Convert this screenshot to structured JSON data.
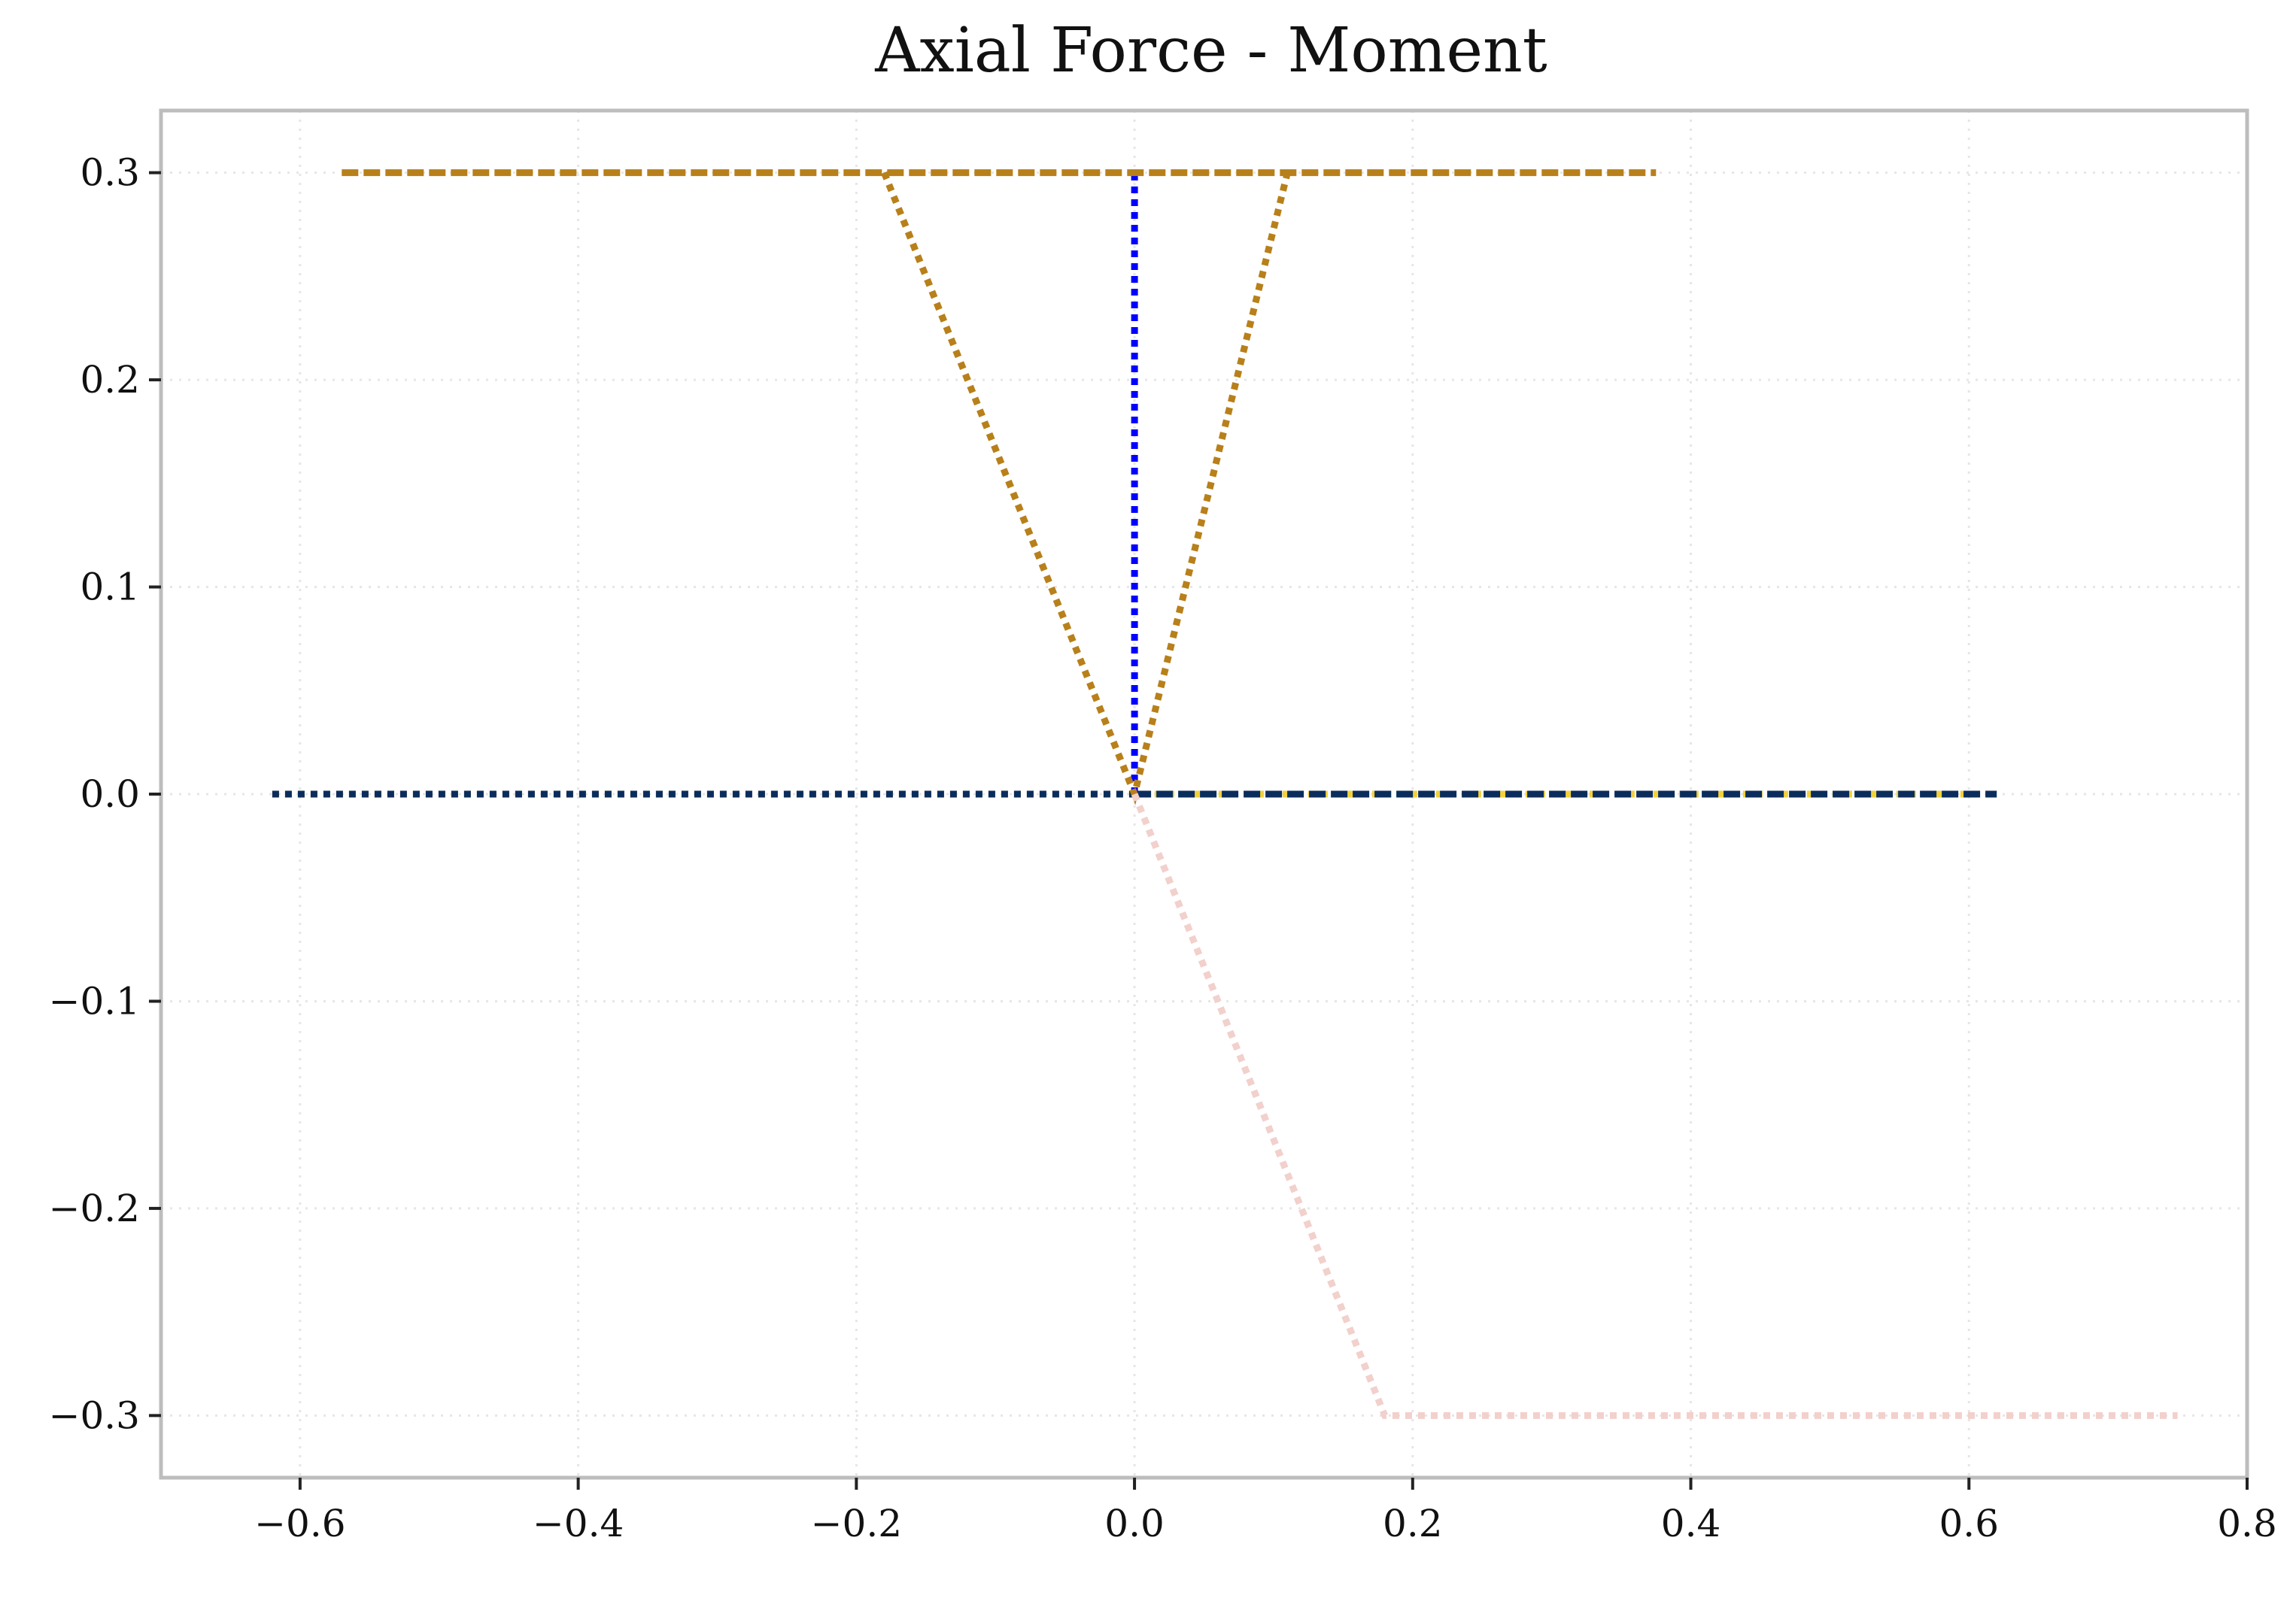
{
  "chart_data": {
    "type": "line",
    "title": "Axial Force - Moment",
    "xlabel": "",
    "ylabel": "",
    "xlim": [
      -0.7,
      0.8
    ],
    "ylim": [
      -0.33,
      0.33
    ],
    "x_ticks": [
      -0.6,
      -0.4,
      -0.2,
      0.0,
      0.2,
      0.4,
      0.6,
      0.8
    ],
    "y_ticks": [
      -0.3,
      -0.2,
      -0.1,
      0.0,
      0.1,
      0.2,
      0.3
    ],
    "x_tick_labels": [
      "−0.6",
      "−0.4",
      "−0.2",
      "0.0",
      "0.2",
      "0.4",
      "0.6",
      "0.8"
    ],
    "y_tick_labels": [
      "−0.3",
      "−0.2",
      "−0.1",
      "0.0",
      "0.1",
      "0.2",
      "0.3"
    ],
    "grid": true,
    "legend": "none",
    "series": [
      {
        "color": "#f2d13a",
        "dash": "dotted",
        "x": [
          -0.62,
          0.62
        ],
        "y": [
          0.0,
          0.0
        ]
      },
      {
        "color": "#0b2d5c",
        "dash": "dotted",
        "x": [
          -0.62,
          0.0
        ],
        "y": [
          0.0,
          0.0
        ]
      },
      {
        "color": "#0b2d5c",
        "dash": "dashed",
        "x": [
          0.0,
          0.62
        ],
        "y": [
          0.0,
          0.0
        ]
      },
      {
        "color": "#0000ff",
        "dash": "dotted",
        "x": [
          0.0,
          0.0
        ],
        "y": [
          0.0,
          0.3
        ]
      },
      {
        "color": "#b8801a",
        "dash": "dashed",
        "x": [
          -0.57,
          0.375
        ],
        "y": [
          0.3,
          0.3
        ]
      },
      {
        "color": "#b8801a",
        "dash": "dotted",
        "x": [
          -0.18,
          0.0,
          0.11
        ],
        "y": [
          0.3,
          0.0,
          0.3
        ]
      },
      {
        "color": "#f2d0cc",
        "dash": "dotted",
        "x": [
          0.0,
          0.18,
          0.75
        ],
        "y": [
          0.0,
          -0.3,
          -0.3
        ]
      }
    ]
  }
}
